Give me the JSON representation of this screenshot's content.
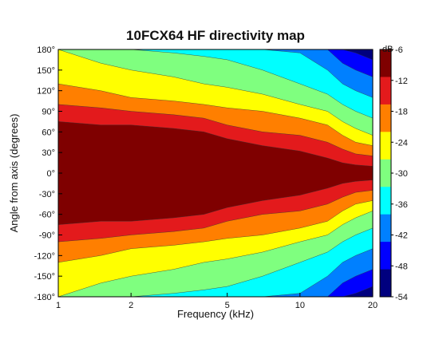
{
  "chart_data": {
    "type": "heatmap",
    "title": "10FCX64 HF directivity map",
    "xlabel": "Frequency (kHz)",
    "ylabel": "Angle from axis (degrees)",
    "x_scale": "log",
    "xlim": [
      1,
      20
    ],
    "ylim": [
      -180,
      180
    ],
    "x_ticks": [
      1,
      2,
      5,
      10,
      20
    ],
    "x_tick_labels": [
      "1",
      "2",
      "5",
      "10",
      "20"
    ],
    "y_ticks": [
      180,
      150,
      120,
      90,
      60,
      30,
      0,
      -30,
      -60,
      -90,
      -120,
      -150,
      -180
    ],
    "y_tick_labels": [
      "180°",
      "150°",
      "120°",
      "90°",
      "60°",
      "30°",
      "0°",
      "-30°",
      "-60°",
      "-90°",
      "-120°",
      "-150°",
      "-180°"
    ],
    "colorbar": {
      "label": "dB",
      "range": [
        -54,
        -6
      ],
      "ticks": [
        -6,
        -12,
        -18,
        -24,
        -30,
        -36,
        -42,
        -48,
        -54
      ],
      "tick_labels": [
        "-6",
        "-12",
        "-18",
        "-24",
        "-30",
        "-36",
        "-42",
        "-48",
        "-54"
      ],
      "colors": [
        "#7f0000",
        "#e31a1c",
        "#ff7f00",
        "#ffff00",
        "#7fff7f",
        "#00ffff",
        "#0080ff",
        "#0000ff",
        "#00007f"
      ]
    },
    "contour_boundaries": {
      "frequencies_khz": [
        1,
        1.5,
        2,
        3,
        4,
        5,
        7,
        10,
        13,
        15,
        17,
        20
      ],
      "-6dB_deg": [
        75,
        70,
        70,
        65,
        60,
        50,
        40,
        32,
        22,
        15,
        12,
        10
      ],
      "-12dB_deg": [
        100,
        95,
        90,
        85,
        80,
        70,
        60,
        55,
        45,
        35,
        28,
        25
      ],
      "-18dB_deg": [
        130,
        120,
        110,
        105,
        100,
        95,
        90,
        80,
        70,
        55,
        45,
        40
      ],
      "-24dB_deg": [
        180,
        160,
        150,
        140,
        130,
        125,
        115,
        100,
        90,
        75,
        65,
        55
      ],
      "-30dB_deg": [
        180,
        180,
        180,
        175,
        170,
        165,
        150,
        130,
        115,
        100,
        90,
        80
      ],
      "-36dB_deg": [
        180,
        180,
        180,
        180,
        180,
        180,
        180,
        175,
        150,
        130,
        120,
        110
      ],
      "-42dB_deg": [
        180,
        180,
        180,
        180,
        180,
        180,
        180,
        180,
        180,
        160,
        150,
        140
      ],
      "-48dB_deg": [
        180,
        180,
        180,
        180,
        180,
        180,
        180,
        180,
        180,
        180,
        175,
        165
      ]
    }
  }
}
